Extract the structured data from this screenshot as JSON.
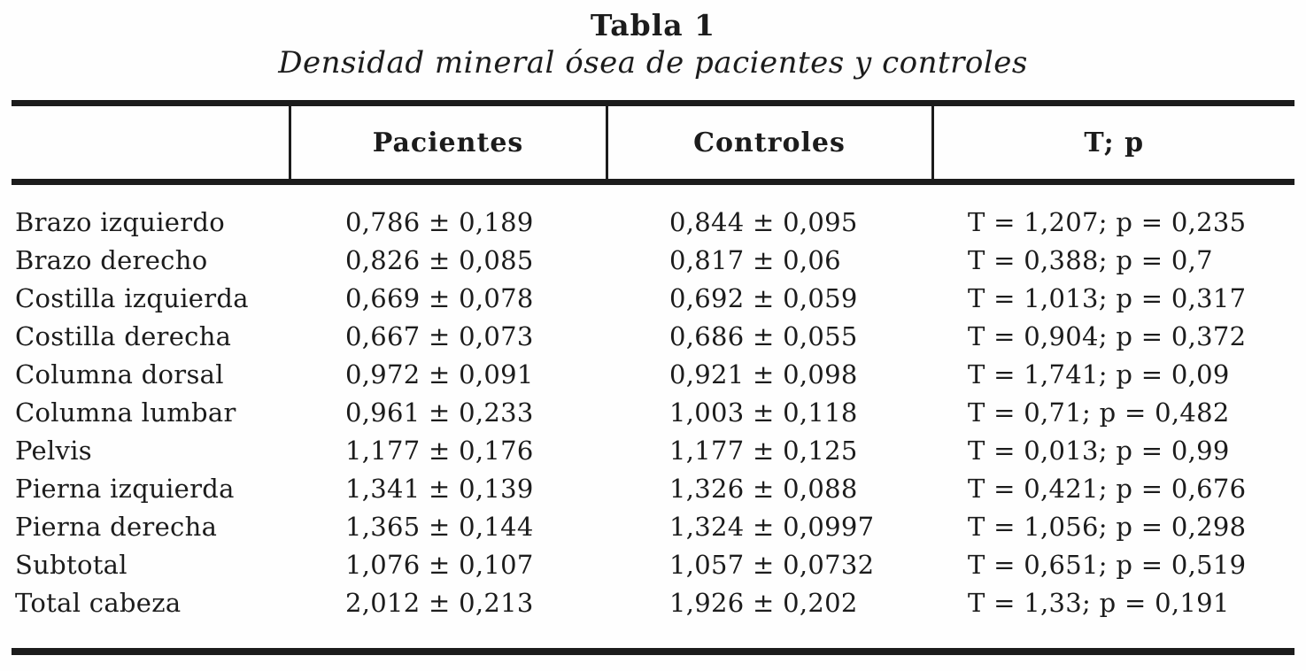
{
  "page": {
    "background_color": "#fefefe",
    "text_color": "#1c1c1c",
    "rule_color": "#1c1c1c"
  },
  "title": "Tabla 1",
  "subtitle": "Densidad mineral ósea de pacientes y controles",
  "table": {
    "columns": [
      "",
      "Pacientes",
      "Controles",
      "T; p"
    ],
    "rows": [
      {
        "label": "Brazo izquierdo",
        "pacientes": "0,786 ± 0,189",
        "controles": "0,844 ± 0,095",
        "tp": "T = 1,207; p = 0,235"
      },
      {
        "label": "Brazo derecho",
        "pacientes": "0,826 ± 0,085",
        "controles": "0,817 ± 0,06",
        "tp": "T = 0,388; p = 0,7"
      },
      {
        "label": "Costilla izquierda",
        "pacientes": "0,669 ± 0,078",
        "controles": "0,692 ± 0,059",
        "tp": "T = 1,013; p = 0,317"
      },
      {
        "label": "Costilla derecha",
        "pacientes": "0,667 ± 0,073",
        "controles": "0,686 ± 0,055",
        "tp": "T = 0,904; p = 0,372"
      },
      {
        "label": "Columna dorsal",
        "pacientes": "0,972 ± 0,091",
        "controles": "0,921 ± 0,098",
        "tp": "T = 1,741; p = 0,09"
      },
      {
        "label": "Columna lumbar",
        "pacientes": "0,961 ± 0,233",
        "controles": "1,003 ± 0,118",
        "tp": "T = 0,71; p = 0,482"
      },
      {
        "label": "Pelvis",
        "pacientes": "1,177 ± 0,176",
        "controles": "1,177 ± 0,125",
        "tp": "T = 0,013; p = 0,99"
      },
      {
        "label": "Pierna izquierda",
        "pacientes": "1,341 ± 0,139",
        "controles": "1,326 ± 0,088",
        "tp": "T = 0,421; p = 0,676"
      },
      {
        "label": "Pierna derecha",
        "pacientes": "1,365 ± 0,144",
        "controles": "1,324 ± 0,0997",
        "tp": "T = 1,056; p = 0,298"
      },
      {
        "label": "Subtotal",
        "pacientes": "1,076 ± 0,107",
        "controles": "1,057 ± 0,0732",
        "tp": "T = 0,651; p = 0,519"
      },
      {
        "label": "Total cabeza",
        "pacientes": "2,012 ± 0,213",
        "controles": "1,926 ± 0,202",
        "tp": "T = 1,33; p = 0,191"
      }
    ]
  }
}
